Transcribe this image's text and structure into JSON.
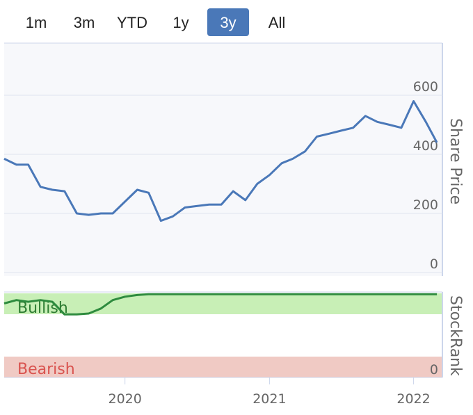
{
  "range_selector": {
    "buttons": [
      {
        "label": "1m",
        "active": false
      },
      {
        "label": "3m",
        "active": false
      },
      {
        "label": "YTD",
        "active": false
      },
      {
        "label": "1y",
        "active": false
      },
      {
        "label": "3y",
        "active": true
      },
      {
        "label": "All",
        "active": false
      }
    ]
  },
  "colors": {
    "price_line": "#4a78b8",
    "rank_line_green": "#2e8b3e",
    "rank_line_gray": "#9aa4b3",
    "bullish_band": "#c8efb6",
    "bearish_band": "#f0cac4",
    "bullish_text": "#2e7d32",
    "bearish_text": "#d9534f",
    "active_button": "#4a78b8"
  },
  "chart_data": [
    {
      "type": "line",
      "ylabel": "Share Price",
      "ylim": [
        0,
        600
      ],
      "yticks": [
        "0",
        "200",
        "400",
        "600"
      ],
      "grid": true,
      "x_axis": {
        "range": [
          "2019-03",
          "2022-03"
        ],
        "ticks": [
          "2020",
          "2021",
          "2022"
        ]
      },
      "series": [
        {
          "x": [
            "2019-03",
            "2019-04",
            "2019-05",
            "2019-06",
            "2019-07",
            "2019-08",
            "2019-09",
            "2019-10",
            "2019-11",
            "2019-12",
            "2020-01",
            "2020-02",
            "2020-03",
            "2020-04",
            "2020-05",
            "2020-06",
            "2020-07",
            "2020-08",
            "2020-09",
            "2020-10",
            "2020-11",
            "2020-12",
            "2021-01",
            "2021-02",
            "2021-03",
            "2021-04",
            "2021-05",
            "2021-06",
            "2021-07",
            "2021-08",
            "2021-09",
            "2021-10",
            "2021-11",
            "2021-12",
            "2022-01",
            "2022-02",
            "2022-03"
          ],
          "values": [
            385,
            365,
            365,
            290,
            280,
            275,
            200,
            195,
            200,
            200,
            240,
            280,
            270,
            175,
            190,
            220,
            225,
            230,
            230,
            275,
            245,
            300,
            330,
            370,
            385,
            410,
            460,
            470,
            480,
            490,
            530,
            510,
            500,
            490,
            580,
            510,
            440
          ]
        }
      ]
    },
    {
      "type": "line",
      "ylabel": "StockRank",
      "ylim": [
        0,
        100
      ],
      "yticks": [
        "0"
      ],
      "bands": [
        "Bullish",
        "Bearish"
      ],
      "series": [
        {
          "x": [
            "2019-03",
            "2019-04",
            "2019-05",
            "2019-06",
            "2019-07",
            "2019-08",
            "2019-09",
            "2019-10",
            "2019-11",
            "2019-12",
            "2020-01",
            "2020-02",
            "2020-03",
            "2020-04",
            "2020-05",
            "2020-06",
            "2020-07",
            "2020-08",
            "2020-09",
            "2020-10",
            "2020-11",
            "2020-12",
            "2021-01",
            "2021-02",
            "2021-03",
            "2021-04",
            "2021-05",
            "2021-06",
            "2021-07",
            "2021-08",
            "2021-09",
            "2021-10",
            "2021-11",
            "2021-12",
            "2022-01",
            "2022-02",
            "2022-03"
          ],
          "values": [
            88,
            92,
            90,
            92,
            90,
            75,
            75,
            76,
            82,
            92,
            96,
            98,
            99,
            99,
            99,
            99,
            99,
            99,
            99,
            99,
            99,
            99,
            99,
            99,
            99,
            99,
            99,
            99,
            99,
            99,
            99,
            99,
            99,
            99,
            99,
            99,
            99
          ]
        }
      ]
    }
  ]
}
